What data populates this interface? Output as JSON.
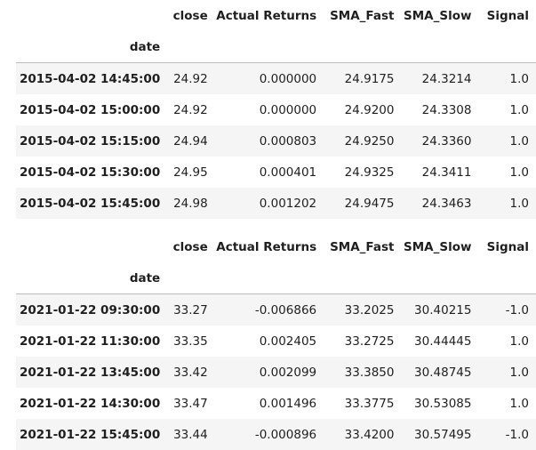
{
  "tables": [
    {
      "columns": [
        "close",
        "Actual Returns",
        "SMA_Fast",
        "SMA_Slow",
        "Signal"
      ],
      "index_name": "date",
      "rows": [
        {
          "index": "2015-04-02 14:45:00",
          "values": [
            "24.92",
            "0.000000",
            "24.9175",
            "24.3214",
            "1.0"
          ]
        },
        {
          "index": "2015-04-02 15:00:00",
          "values": [
            "24.92",
            "0.000000",
            "24.9200",
            "24.3308",
            "1.0"
          ]
        },
        {
          "index": "2015-04-02 15:15:00",
          "values": [
            "24.94",
            "0.000803",
            "24.9250",
            "24.3360",
            "1.0"
          ]
        },
        {
          "index": "2015-04-02 15:30:00",
          "values": [
            "24.95",
            "0.000401",
            "24.9325",
            "24.3411",
            "1.0"
          ]
        },
        {
          "index": "2015-04-02 15:45:00",
          "values": [
            "24.98",
            "0.001202",
            "24.9475",
            "24.3463",
            "1.0"
          ]
        }
      ]
    },
    {
      "columns": [
        "close",
        "Actual Returns",
        "SMA_Fast",
        "SMA_Slow",
        "Signal"
      ],
      "index_name": "date",
      "rows": [
        {
          "index": "2021-01-22 09:30:00",
          "values": [
            "33.27",
            "-0.006866",
            "33.2025",
            "30.40215",
            "-1.0"
          ]
        },
        {
          "index": "2021-01-22 11:30:00",
          "values": [
            "33.35",
            "0.002405",
            "33.2725",
            "30.44445",
            "1.0"
          ]
        },
        {
          "index": "2021-01-22 13:45:00",
          "values": [
            "33.42",
            "0.002099",
            "33.3850",
            "30.48745",
            "1.0"
          ]
        },
        {
          "index": "2021-01-22 14:30:00",
          "values": [
            "33.47",
            "0.001496",
            "33.3775",
            "30.53085",
            "1.0"
          ]
        },
        {
          "index": "2021-01-22 15:45:00",
          "values": [
            "33.44",
            "-0.000896",
            "33.4200",
            "30.57495",
            "-1.0"
          ]
        }
      ]
    }
  ]
}
